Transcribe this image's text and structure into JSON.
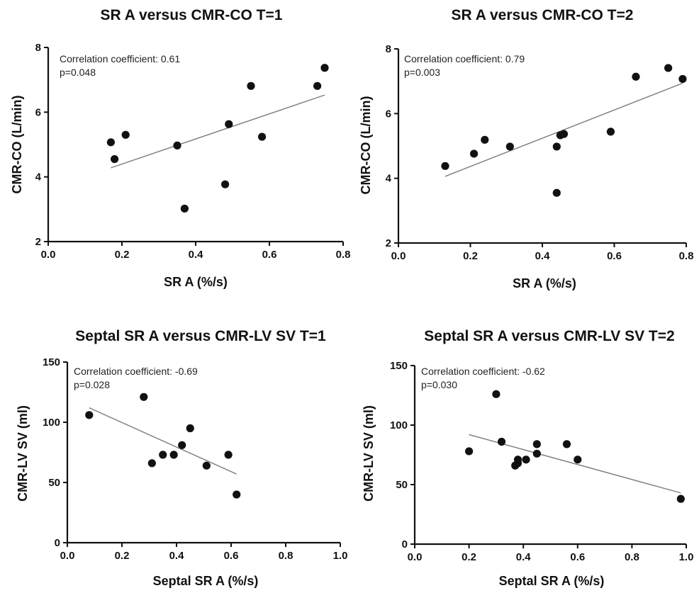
{
  "colors": {
    "points": "#111111",
    "regression_line": "#7a7a7a",
    "axes": "#111111",
    "background": "#ffffff"
  },
  "chart_data": [
    {
      "type": "scatter",
      "title": "SR A versus CMR-CO T=1",
      "xlabel": "SR A (%/s)",
      "ylabel": "CMR-CO  (L/min)",
      "xlim": [
        0.0,
        0.8
      ],
      "ylim": [
        2,
        8
      ],
      "xticks": [
        0.0,
        0.2,
        0.4,
        0.6,
        0.8
      ],
      "xtick_labels": [
        "0.0",
        "0.2",
        "0.4",
        "0.6",
        "0.8"
      ],
      "yticks": [
        2,
        4,
        6,
        8
      ],
      "ytick_labels": [
        "2",
        "4",
        "6",
        "8"
      ],
      "grid": false,
      "annotations": [
        "Correlation coefficient: 0.61",
        "p=0.048"
      ],
      "points": [
        {
          "x": 0.17,
          "y": 5.07
        },
        {
          "x": 0.18,
          "y": 4.55
        },
        {
          "x": 0.21,
          "y": 5.3
        },
        {
          "x": 0.35,
          "y": 4.97
        },
        {
          "x": 0.37,
          "y": 3.02
        },
        {
          "x": 0.48,
          "y": 3.77
        },
        {
          "x": 0.49,
          "y": 5.63
        },
        {
          "x": 0.55,
          "y": 6.81
        },
        {
          "x": 0.58,
          "y": 5.24
        },
        {
          "x": 0.73,
          "y": 6.81
        },
        {
          "x": 0.75,
          "y": 7.37
        }
      ],
      "regression": {
        "x": [
          0.17,
          0.75
        ],
        "y": [
          4.28,
          6.53
        ]
      }
    },
    {
      "type": "scatter",
      "title": "SR A versus CMR-CO T=2",
      "xlabel": "SR A (%/s)",
      "ylabel": "CMR-CO  (L/min)",
      "xlim": [
        0.0,
        0.8
      ],
      "ylim": [
        2,
        8
      ],
      "xticks": [
        0.0,
        0.2,
        0.4,
        0.6,
        0.8
      ],
      "xtick_labels": [
        "0.0",
        "0.2",
        "0.4",
        "0.6",
        "0.8"
      ],
      "yticks": [
        2,
        4,
        6,
        8
      ],
      "ytick_labels": [
        "2",
        "4",
        "6",
        "8"
      ],
      "grid": false,
      "annotations": [
        "Correlation coefficient: 0.79",
        "p=0.003"
      ],
      "points": [
        {
          "x": 0.13,
          "y": 4.38
        },
        {
          "x": 0.21,
          "y": 4.76
        },
        {
          "x": 0.24,
          "y": 5.19
        },
        {
          "x": 0.31,
          "y": 4.98
        },
        {
          "x": 0.44,
          "y": 4.98
        },
        {
          "x": 0.44,
          "y": 3.55
        },
        {
          "x": 0.45,
          "y": 5.33
        },
        {
          "x": 0.46,
          "y": 5.37
        },
        {
          "x": 0.59,
          "y": 5.44
        },
        {
          "x": 0.66,
          "y": 7.14
        },
        {
          "x": 0.75,
          "y": 7.41
        },
        {
          "x": 0.79,
          "y": 7.07
        }
      ],
      "regression": {
        "x": [
          0.13,
          0.79
        ],
        "y": [
          4.06,
          6.94
        ]
      }
    },
    {
      "type": "scatter",
      "title": "Septal SR A versus CMR-LV SV T=1",
      "xlabel": "Septal SR A (%/s)",
      "ylabel": "CMR-LV SV (ml)",
      "xlim": [
        0.0,
        1.0
      ],
      "ylim": [
        0,
        150
      ],
      "xticks": [
        0.0,
        0.2,
        0.4,
        0.6,
        0.8,
        1.0
      ],
      "xtick_labels": [
        "0.0",
        "0.2",
        "0.4",
        "0.6",
        "0.8",
        "1.0"
      ],
      "yticks": [
        0,
        50,
        100,
        150
      ],
      "ytick_labels": [
        "0",
        "50",
        "100",
        "150"
      ],
      "grid": false,
      "annotations": [
        "Correlation coefficient: -0.69",
        "p=0.028"
      ],
      "points": [
        {
          "x": 0.08,
          "y": 106
        },
        {
          "x": 0.28,
          "y": 121
        },
        {
          "x": 0.31,
          "y": 66
        },
        {
          "x": 0.35,
          "y": 73
        },
        {
          "x": 0.39,
          "y": 73
        },
        {
          "x": 0.42,
          "y": 81
        },
        {
          "x": 0.45,
          "y": 95
        },
        {
          "x": 0.51,
          "y": 64
        },
        {
          "x": 0.59,
          "y": 73
        },
        {
          "x": 0.62,
          "y": 40
        }
      ],
      "regression": {
        "x": [
          0.08,
          0.62
        ],
        "y": [
          112,
          57
        ]
      }
    },
    {
      "type": "scatter",
      "title": "Septal SR A versus CMR-LV SV T=2",
      "xlabel": "Septal SR A (%/s)",
      "ylabel": "CMR-LV SV (ml)",
      "xlim": [
        0.0,
        1.0
      ],
      "ylim": [
        0,
        150
      ],
      "xticks": [
        0.0,
        0.2,
        0.4,
        0.6,
        0.8,
        1.0
      ],
      "xtick_labels": [
        "0.0",
        "0.2",
        "0.4",
        "0.6",
        "0.8",
        "1.0"
      ],
      "yticks": [
        0,
        50,
        100,
        150
      ],
      "ytick_labels": [
        "0",
        "50",
        "100",
        "150"
      ],
      "grid": false,
      "annotations": [
        "Correlation coefficient: -0.62",
        "p=0.030"
      ],
      "points": [
        {
          "x": 0.2,
          "y": 78
        },
        {
          "x": 0.3,
          "y": 126
        },
        {
          "x": 0.32,
          "y": 86
        },
        {
          "x": 0.37,
          "y": 66
        },
        {
          "x": 0.38,
          "y": 71
        },
        {
          "x": 0.38,
          "y": 68
        },
        {
          "x": 0.41,
          "y": 71
        },
        {
          "x": 0.45,
          "y": 84
        },
        {
          "x": 0.45,
          "y": 76
        },
        {
          "x": 0.56,
          "y": 84
        },
        {
          "x": 0.6,
          "y": 71
        },
        {
          "x": 0.98,
          "y": 38
        }
      ],
      "regression": {
        "x": [
          0.2,
          0.98
        ],
        "y": [
          92,
          43
        ]
      }
    }
  ]
}
